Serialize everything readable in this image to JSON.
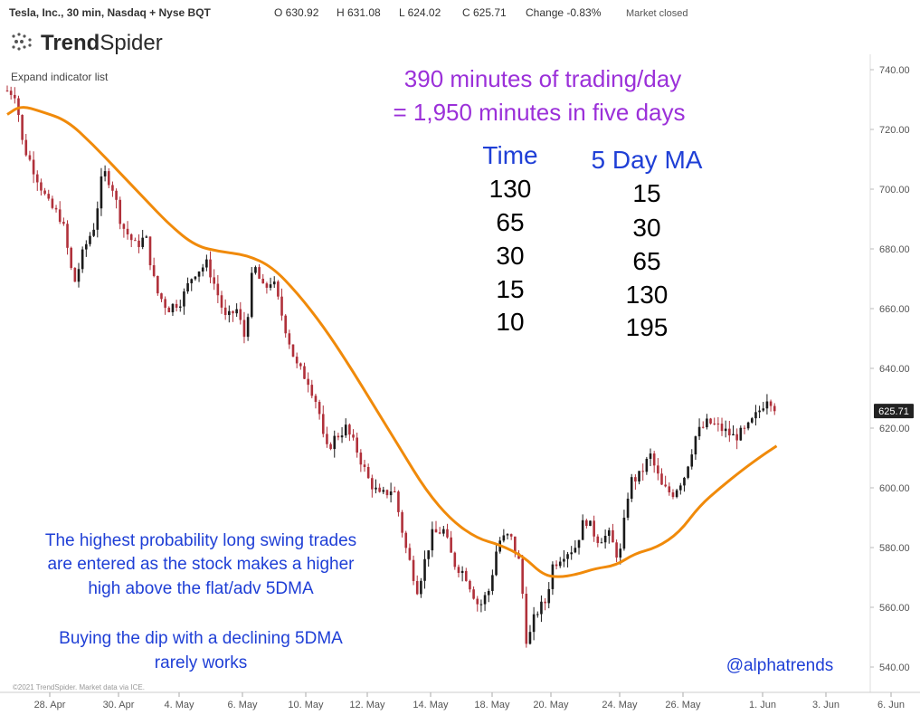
{
  "header": {
    "symbol": "Tesla, Inc., 30 min, Nasdaq + Nyse BQT",
    "open": "O 630.92",
    "high": "H 631.08",
    "low": "L 624.02",
    "close": "C 625.71",
    "change": "Change -0.83%",
    "status": "Market closed"
  },
  "logo_text": {
    "bold": "Trend",
    "light": "Spider"
  },
  "expand_label": "Expand indicator list",
  "annotations": {
    "title_line1": "390 minutes of trading/day",
    "title_line2": "= 1,950 minutes in five days",
    "col1_header": "Time",
    "col2_header": "5 Day MA",
    "col1_values": [
      "130",
      "65",
      "30",
      "15",
      "10"
    ],
    "col2_values": [
      "15",
      "30",
      "65",
      "130",
      "195"
    ],
    "note1_line1": "The highest probability long swing trades",
    "note1_line2": "are entered as the stock makes a higher",
    "note1_line3": "high above the flat/adv 5DMA",
    "note2_line1": "Buying the dip with a declining 5DMA",
    "note2_line2": "rarely works",
    "handle": "@alphatrends"
  },
  "copyright": "©2021 TrendSpider. Market data via ICE.",
  "colors": {
    "purple": "#9b30d9",
    "blue": "#1f3fd6",
    "ma": "#f08a0a",
    "candle": "#1a1a1a",
    "down_candle": "#b0303a",
    "price_tag": "#222222"
  },
  "chart_data": {
    "type": "candlestick",
    "xlabels": [
      "28. Apr",
      "30. Apr",
      "4. May",
      "6. May",
      "10. May",
      "12. May",
      "14. May",
      "18. May",
      "20. May",
      "24. May",
      "26. May",
      "1. Jun",
      "3. Jun",
      "6. Jun"
    ],
    "y_ticks": [
      540,
      560,
      580,
      600,
      620,
      640,
      660,
      680,
      700,
      720,
      740
    ],
    "ylim": [
      535,
      745
    ],
    "last_price": "625.71",
    "price_path": [
      {
        "t": 0.0,
        "p": 733
      },
      {
        "t": 0.5,
        "p": 732
      },
      {
        "t": 0.9,
        "p": 715
      },
      {
        "t": 1.6,
        "p": 706
      },
      {
        "t": 2.4,
        "p": 695
      },
      {
        "t": 3.2,
        "p": 690
      },
      {
        "t": 3.9,
        "p": 668
      },
      {
        "t": 4.5,
        "p": 680
      },
      {
        "t": 5.1,
        "p": 688
      },
      {
        "t": 5.6,
        "p": 706
      },
      {
        "t": 6.1,
        "p": 702
      },
      {
        "t": 6.7,
        "p": 688
      },
      {
        "t": 7.5,
        "p": 681
      },
      {
        "t": 8.1,
        "p": 684
      },
      {
        "t": 8.7,
        "p": 666
      },
      {
        "t": 9.4,
        "p": 660
      },
      {
        "t": 10.2,
        "p": 663
      },
      {
        "t": 10.9,
        "p": 672
      },
      {
        "t": 11.7,
        "p": 675
      },
      {
        "t": 12.3,
        "p": 665
      },
      {
        "t": 12.8,
        "p": 656
      },
      {
        "t": 13.4,
        "p": 660
      },
      {
        "t": 13.9,
        "p": 650
      },
      {
        "t": 14.4,
        "p": 675
      },
      {
        "t": 15.0,
        "p": 666
      },
      {
        "t": 15.5,
        "p": 670
      },
      {
        "t": 16.2,
        "p": 655
      },
      {
        "t": 16.9,
        "p": 641
      },
      {
        "t": 17.6,
        "p": 636
      },
      {
        "t": 18.2,
        "p": 627
      },
      {
        "t": 18.6,
        "p": 612
      },
      {
        "t": 19.2,
        "p": 617
      },
      {
        "t": 19.8,
        "p": 620
      },
      {
        "t": 20.5,
        "p": 612
      },
      {
        "t": 21.1,
        "p": 603
      },
      {
        "t": 21.8,
        "p": 597
      },
      {
        "t": 22.6,
        "p": 600
      },
      {
        "t": 23.3,
        "p": 580
      },
      {
        "t": 24.0,
        "p": 566
      },
      {
        "t": 24.8,
        "p": 584
      },
      {
        "t": 25.5,
        "p": 586
      },
      {
        "t": 26.1,
        "p": 575
      },
      {
        "t": 26.8,
        "p": 571
      },
      {
        "t": 27.6,
        "p": 560
      },
      {
        "t": 28.2,
        "p": 566
      },
      {
        "t": 28.7,
        "p": 582
      },
      {
        "t": 29.4,
        "p": 584
      },
      {
        "t": 30.0,
        "p": 574
      },
      {
        "t": 30.4,
        "p": 547
      },
      {
        "t": 30.9,
        "p": 558
      },
      {
        "t": 31.5,
        "p": 562
      },
      {
        "t": 31.9,
        "p": 574
      },
      {
        "t": 32.5,
        "p": 578
      },
      {
        "t": 33.2,
        "p": 580
      },
      {
        "t": 33.8,
        "p": 590
      },
      {
        "t": 34.5,
        "p": 583
      },
      {
        "t": 35.2,
        "p": 584
      },
      {
        "t": 35.8,
        "p": 576
      },
      {
        "t": 36.4,
        "p": 602
      },
      {
        "t": 37.0,
        "p": 604
      },
      {
        "t": 37.6,
        "p": 611
      },
      {
        "t": 38.3,
        "p": 600
      },
      {
        "t": 38.9,
        "p": 598
      },
      {
        "t": 39.6,
        "p": 604
      },
      {
        "t": 40.3,
        "p": 618
      },
      {
        "t": 41.0,
        "p": 622
      },
      {
        "t": 41.7,
        "p": 620
      },
      {
        "t": 42.5,
        "p": 617
      },
      {
        "t": 43.2,
        "p": 619
      },
      {
        "t": 43.9,
        "p": 625
      },
      {
        "t": 44.5,
        "p": 631
      },
      {
        "t": 45.0,
        "p": 626
      }
    ],
    "ma_path": [
      {
        "t": 0.0,
        "p": 725
      },
      {
        "t": 0.8,
        "p": 728
      },
      {
        "t": 2.0,
        "p": 726
      },
      {
        "t": 3.5,
        "p": 723
      },
      {
        "t": 5.0,
        "p": 715
      },
      {
        "t": 6.5,
        "p": 706
      },
      {
        "t": 8.0,
        "p": 697
      },
      {
        "t": 9.5,
        "p": 688
      },
      {
        "t": 11.0,
        "p": 681
      },
      {
        "t": 12.5,
        "p": 679
      },
      {
        "t": 14.0,
        "p": 678
      },
      {
        "t": 15.5,
        "p": 674
      },
      {
        "t": 17.0,
        "p": 665
      },
      {
        "t": 18.5,
        "p": 654
      },
      {
        "t": 20.0,
        "p": 641
      },
      {
        "t": 21.5,
        "p": 627
      },
      {
        "t": 23.0,
        "p": 613
      },
      {
        "t": 24.5,
        "p": 599
      },
      {
        "t": 26.0,
        "p": 589
      },
      {
        "t": 27.5,
        "p": 583
      },
      {
        "t": 28.8,
        "p": 581
      },
      {
        "t": 30.2,
        "p": 577
      },
      {
        "t": 31.3,
        "p": 571
      },
      {
        "t": 32.2,
        "p": 570
      },
      {
        "t": 33.3,
        "p": 571
      },
      {
        "t": 34.4,
        "p": 573
      },
      {
        "t": 35.6,
        "p": 574
      },
      {
        "t": 36.7,
        "p": 578
      },
      {
        "t": 38.0,
        "p": 580
      },
      {
        "t": 39.3,
        "p": 585
      },
      {
        "t": 40.5,
        "p": 594
      },
      {
        "t": 41.7,
        "p": 600
      },
      {
        "t": 43.0,
        "p": 606
      },
      {
        "t": 44.2,
        "p": 611
      },
      {
        "t": 45.0,
        "p": 614
      }
    ]
  }
}
